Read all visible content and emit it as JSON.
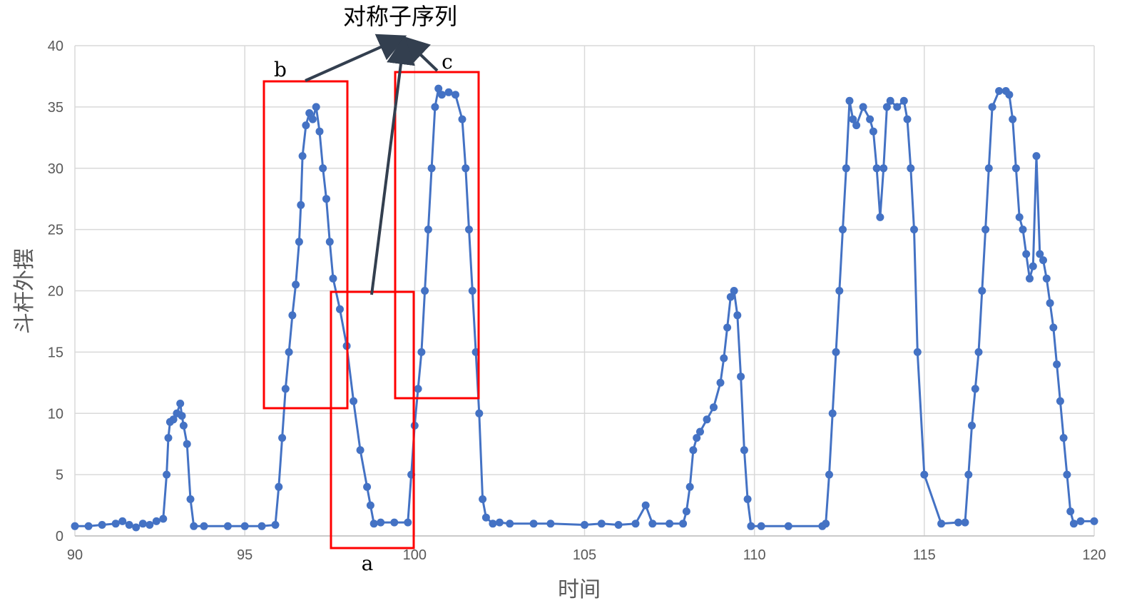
{
  "chart_data": {
    "type": "scatter",
    "title": "",
    "xlabel": "时间",
    "ylabel": "斗杆外摆",
    "xlim": [
      90,
      120
    ],
    "ylim": [
      0,
      40
    ],
    "x_ticks": [
      "90",
      "95",
      "100",
      "105",
      "110",
      "115",
      "120"
    ],
    "y_ticks": [
      "0",
      "5",
      "10",
      "15",
      "20",
      "25",
      "30",
      "35",
      "40"
    ],
    "grid": true,
    "legend": "none",
    "series": [
      {
        "color": "#4472C4",
        "x": [
          90.0,
          90.4,
          90.8,
          91.2,
          91.4,
          91.6,
          91.8,
          92.0,
          92.2,
          92.4,
          92.6,
          92.7,
          92.75,
          92.8,
          92.9,
          93.0,
          93.1,
          93.15,
          93.2,
          93.3,
          93.4,
          93.5,
          93.8,
          94.5,
          95.0,
          95.5,
          95.9,
          96.0,
          96.1,
          96.2,
          96.3,
          96.4,
          96.5,
          96.6,
          96.65,
          96.7,
          96.8,
          96.9,
          97.0,
          97.1,
          97.2,
          97.3,
          97.4,
          97.5,
          97.6,
          97.8,
          98.0,
          98.2,
          98.4,
          98.6,
          98.7,
          98.8,
          99.0,
          99.4,
          99.8,
          99.9,
          100.0,
          100.1,
          100.2,
          100.3,
          100.4,
          100.5,
          100.6,
          100.7,
          100.8,
          101.0,
          101.2,
          101.4,
          101.5,
          101.6,
          101.7,
          101.8,
          101.9,
          102.0,
          102.1,
          102.3,
          102.5,
          102.8,
          103.5,
          104.0,
          105.0,
          105.5,
          106.0,
          106.5,
          106.8,
          107.0,
          107.5,
          107.9,
          108.0,
          108.1,
          108.2,
          108.3,
          108.4,
          108.6,
          108.8,
          109.0,
          109.1,
          109.2,
          109.3,
          109.4,
          109.5,
          109.6,
          109.7,
          109.8,
          109.9,
          110.2,
          111.0,
          112.0,
          112.1,
          112.2,
          112.3,
          112.4,
          112.5,
          112.6,
          112.7,
          112.8,
          112.9,
          113.0,
          113.2,
          113.4,
          113.5,
          113.6,
          113.7,
          113.8,
          113.9,
          114.0,
          114.2,
          114.4,
          114.5,
          114.6,
          114.7,
          114.8,
          115.0,
          115.5,
          116.0,
          116.2,
          116.3,
          116.4,
          116.5,
          116.6,
          116.7,
          116.8,
          116.9,
          117.0,
          117.2,
          117.4,
          117.5,
          117.6,
          117.7,
          117.8,
          117.9,
          118.0,
          118.1,
          118.2,
          118.3,
          118.4,
          118.5,
          118.6,
          118.7,
          118.8,
          118.9,
          119.0,
          119.1,
          119.2,
          119.3,
          119.4,
          119.6,
          120.0
        ],
        "y": [
          0.8,
          0.8,
          0.9,
          1.0,
          1.2,
          0.9,
          0.7,
          1.0,
          0.9,
          1.2,
          1.4,
          5.0,
          8.0,
          9.3,
          9.5,
          10.0,
          10.8,
          9.8,
          9.0,
          7.5,
          3.0,
          0.8,
          0.8,
          0.8,
          0.8,
          0.8,
          0.9,
          4.0,
          8.0,
          12.0,
          15.0,
          18.0,
          20.5,
          24.0,
          27.0,
          31.0,
          33.5,
          34.5,
          34.0,
          35.0,
          33.0,
          30.0,
          27.5,
          24.0,
          21.0,
          18.5,
          15.5,
          11.0,
          7.0,
          4.0,
          2.5,
          1.0,
          1.1,
          1.1,
          1.1,
          5.0,
          9.0,
          12.0,
          15.0,
          20.0,
          25.0,
          30.0,
          35.0,
          36.5,
          36.0,
          36.2,
          36.0,
          34.0,
          30.0,
          25.0,
          20.0,
          15.0,
          10.0,
          3.0,
          1.5,
          1.0,
          1.1,
          1.0,
          1.0,
          1.0,
          0.9,
          1.0,
          0.9,
          1.0,
          2.5,
          1.0,
          1.0,
          1.0,
          2.0,
          4.0,
          7.0,
          8.0,
          8.5,
          9.5,
          10.5,
          12.5,
          14.5,
          17.0,
          19.5,
          20.0,
          18.0,
          13.0,
          7.0,
          3.0,
          0.8,
          0.8,
          0.8,
          0.8,
          1.0,
          5.0,
          10.0,
          15.0,
          20.0,
          25.0,
          30.0,
          35.5,
          34.0,
          33.5,
          35.0,
          34.0,
          33.0,
          30.0,
          26.0,
          30.0,
          35.0,
          35.5,
          35.0,
          35.5,
          34.0,
          30.0,
          25.0,
          15.0,
          5.0,
          1.0,
          1.1,
          1.1,
          5.0,
          9.0,
          12.0,
          15.0,
          20.0,
          25.0,
          30.0,
          35.0,
          36.3,
          36.3,
          36.0,
          34.0,
          30.0,
          26.0,
          25.0,
          23.0,
          21.0,
          22.0,
          31.0,
          23.0,
          22.5,
          21.0,
          19.0,
          17.0,
          14.0,
          11.0,
          8.0,
          5.0,
          2.0,
          1.0,
          1.2,
          1.2
        ]
      }
    ],
    "annotations": {
      "title_text": "对称子序列",
      "label_a": "a",
      "label_b": "b",
      "label_c": "c"
    },
    "box_color": "#FF0000",
    "arrow_color": "#333F4F"
  }
}
